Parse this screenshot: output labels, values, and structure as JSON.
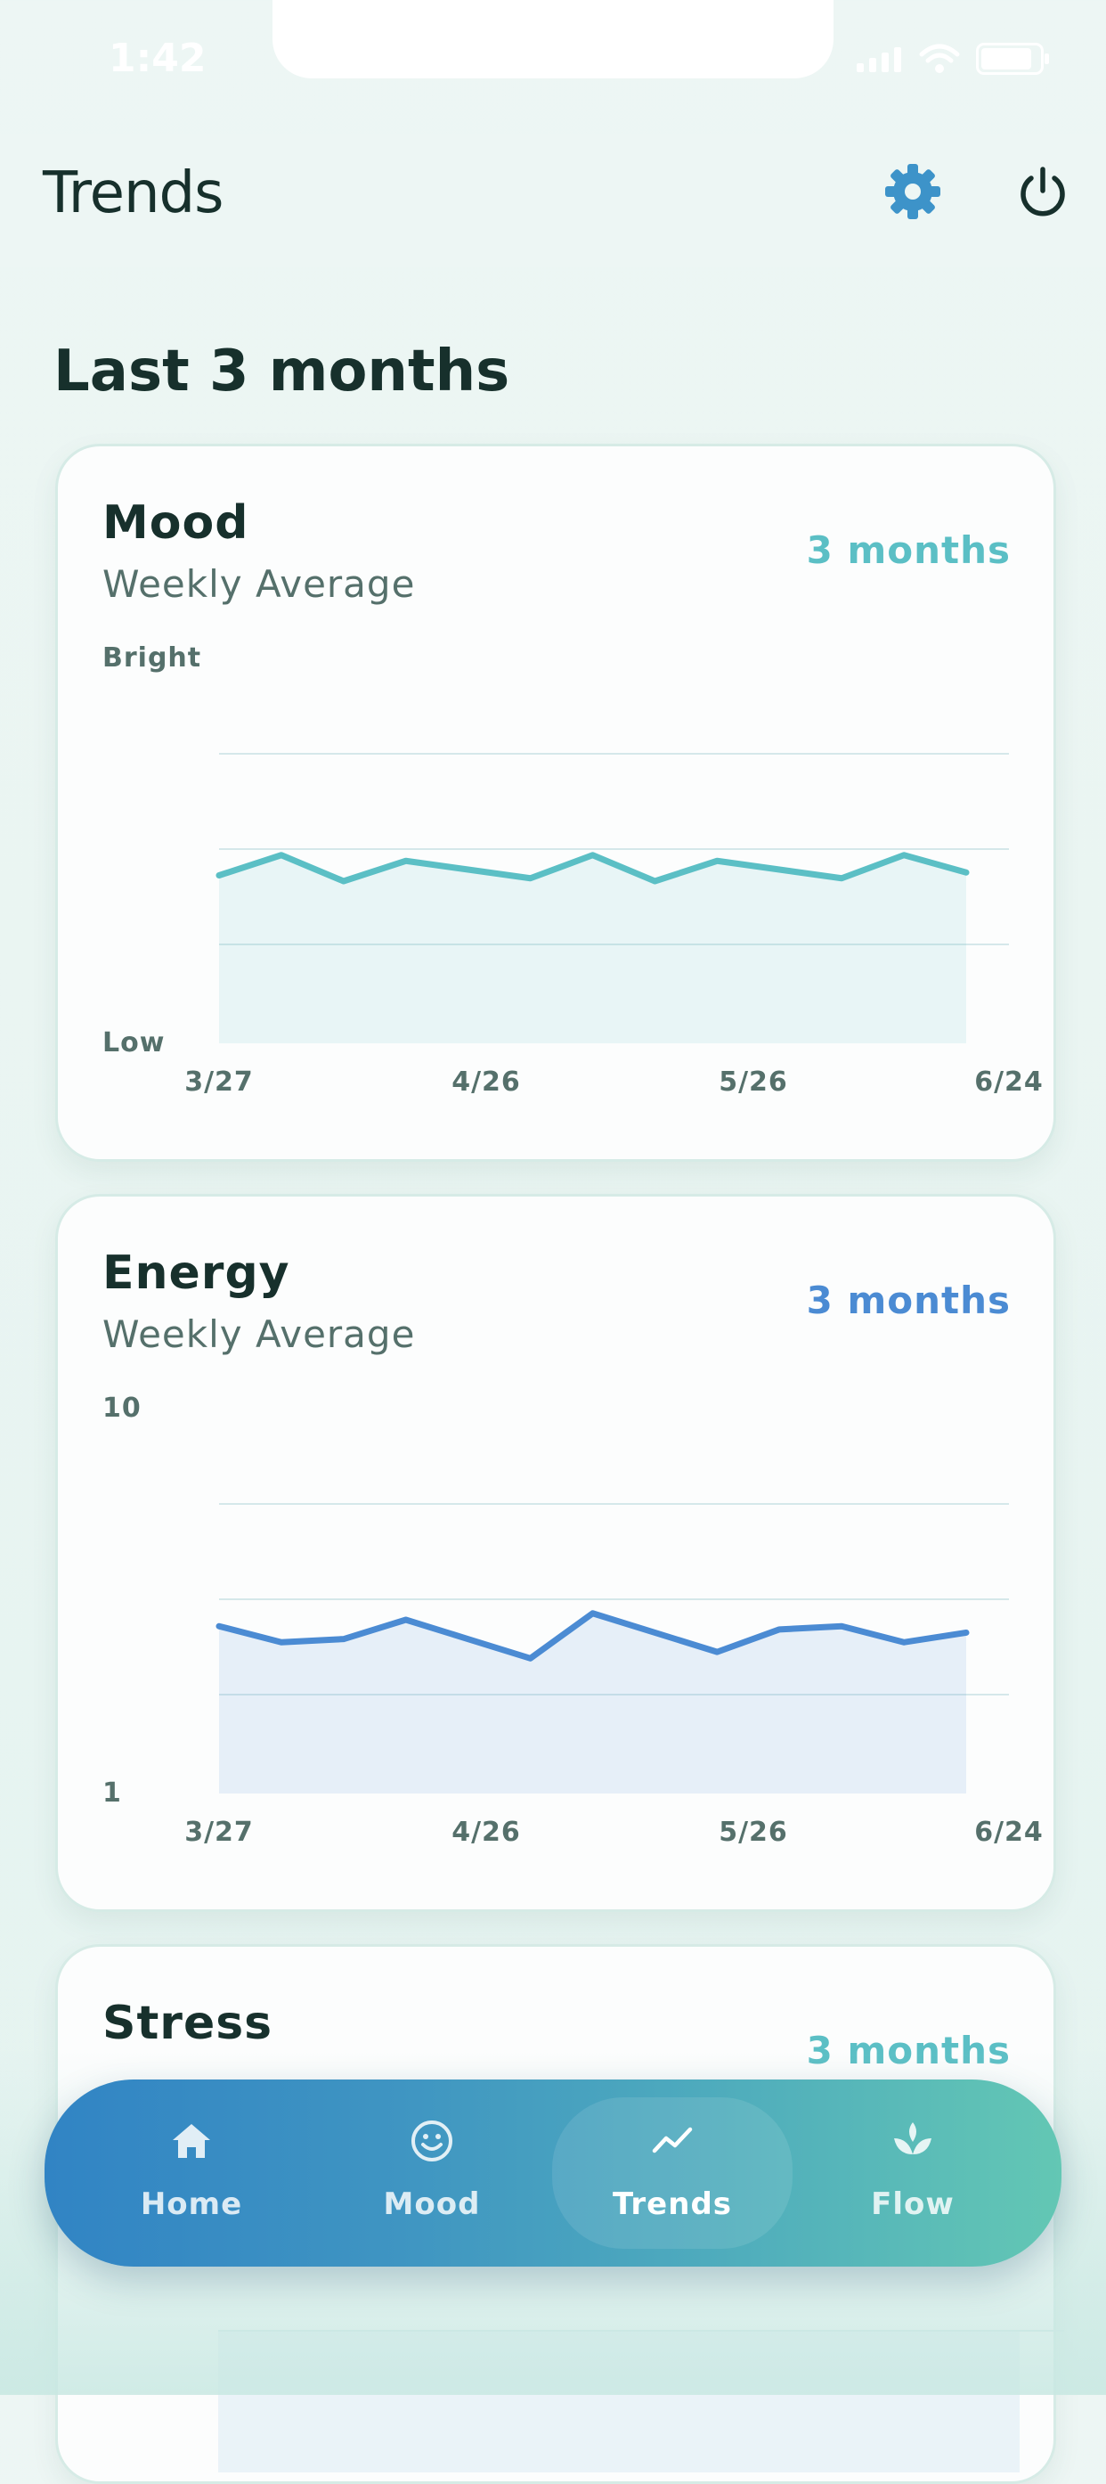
{
  "status_bar": {
    "time": "1:42"
  },
  "header": {
    "title": "Trends"
  },
  "section": {
    "title": "Last 3 months"
  },
  "colors": {
    "mood": "#5bbfc5",
    "energy": "#4b8bd3",
    "stress": "#5bbfc5",
    "text_dark": "#17302c"
  },
  "cards": [
    {
      "title": "Mood",
      "subtitle": "Weekly Average",
      "range": "3 months",
      "y_top": "Bright",
      "y_bottom": "Low",
      "x_labels": [
        "3/27",
        "4/26",
        "5/26",
        "6/24"
      ]
    },
    {
      "title": "Energy",
      "subtitle": "Weekly Average",
      "range": "3 months",
      "y_top": "10",
      "y_bottom": "1",
      "x_labels": [
        "3/27",
        "4/26",
        "5/26",
        "6/24"
      ]
    },
    {
      "title": "Stress",
      "range": "3 months"
    }
  ],
  "chart_data": [
    {
      "type": "area",
      "title": "Mood",
      "ylabel": "",
      "x_tick_labels": [
        "3/27",
        "4/26",
        "5/26",
        "6/24"
      ],
      "y_tick_labels": [
        "Bright",
        "Low"
      ],
      "ylim": [
        0,
        1
      ],
      "grid": true,
      "values": [
        0.58,
        0.65,
        0.56,
        0.63,
        0.6,
        0.57,
        0.65,
        0.56,
        0.63,
        0.6,
        0.57,
        0.65,
        0.59
      ]
    },
    {
      "type": "area",
      "title": "Energy",
      "ylabel": "",
      "x_tick_labels": [
        "3/27",
        "4/26",
        "5/26",
        "6/24"
      ],
      "y_tick_labels": [
        "10",
        "1"
      ],
      "ylim": [
        1,
        10
      ],
      "grid": true,
      "values": [
        6.2,
        5.7,
        5.8,
        6.4,
        5.8,
        5.2,
        6.6,
        6.0,
        5.4,
        6.1,
        6.2,
        5.7,
        6.0
      ]
    }
  ],
  "tabbar": {
    "tabs": [
      {
        "label": "Home",
        "icon": "home-icon"
      },
      {
        "label": "Mood",
        "icon": "smiley-icon"
      },
      {
        "label": "Trends",
        "icon": "trend-line-icon",
        "active": true
      },
      {
        "label": "Flow",
        "icon": "lotus-icon"
      }
    ]
  }
}
